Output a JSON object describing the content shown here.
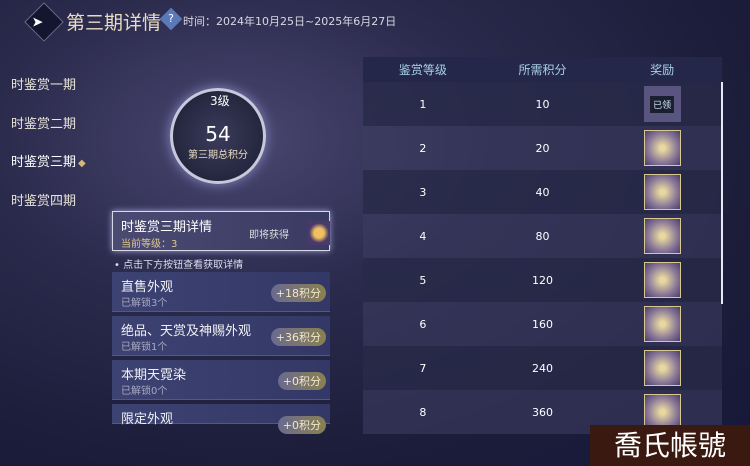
{
  "header": {
    "title": "第三期详情",
    "help_icon": "?",
    "time": "时间：2024年10月25日~2025年6月27日"
  },
  "nav": [
    {
      "label": "时鉴赏一期"
    },
    {
      "label": "时鉴赏二期"
    },
    {
      "label": "时鉴赏三期",
      "active": true
    },
    {
      "label": "时鉴赏四期"
    }
  ],
  "summary": {
    "level": "3级",
    "score": "54",
    "score_label": "第三期总积分"
  },
  "level_card": {
    "title": "时鉴赏三期详情",
    "current": "当前等级：3",
    "soon": "即将获得"
  },
  "hint": "点击下方按钮查看获取详情",
  "categories": [
    {
      "title": "直售外观",
      "sub": "已解锁3个",
      "badge": "+18积分"
    },
    {
      "title": "绝品、天赏及神赐外观",
      "sub": "已解锁1个",
      "badge": "+36积分"
    },
    {
      "title": "本期天霓染",
      "sub": "已解锁0个",
      "badge": "+0积分"
    },
    {
      "title": "限定外观",
      "sub": "",
      "badge": "+0积分"
    }
  ],
  "table": {
    "headers": [
      "鉴赏等级",
      "所需积分",
      "奖励"
    ],
    "rows": [
      {
        "level": "1",
        "points": "10",
        "reward": "已领"
      },
      {
        "level": "2",
        "points": "20"
      },
      {
        "level": "3",
        "points": "40"
      },
      {
        "level": "4",
        "points": "80"
      },
      {
        "level": "5",
        "points": "120"
      },
      {
        "level": "6",
        "points": "160"
      },
      {
        "level": "7",
        "points": "240"
      },
      {
        "level": "8",
        "points": "360"
      }
    ]
  },
  "watermark": "喬氏帳號"
}
